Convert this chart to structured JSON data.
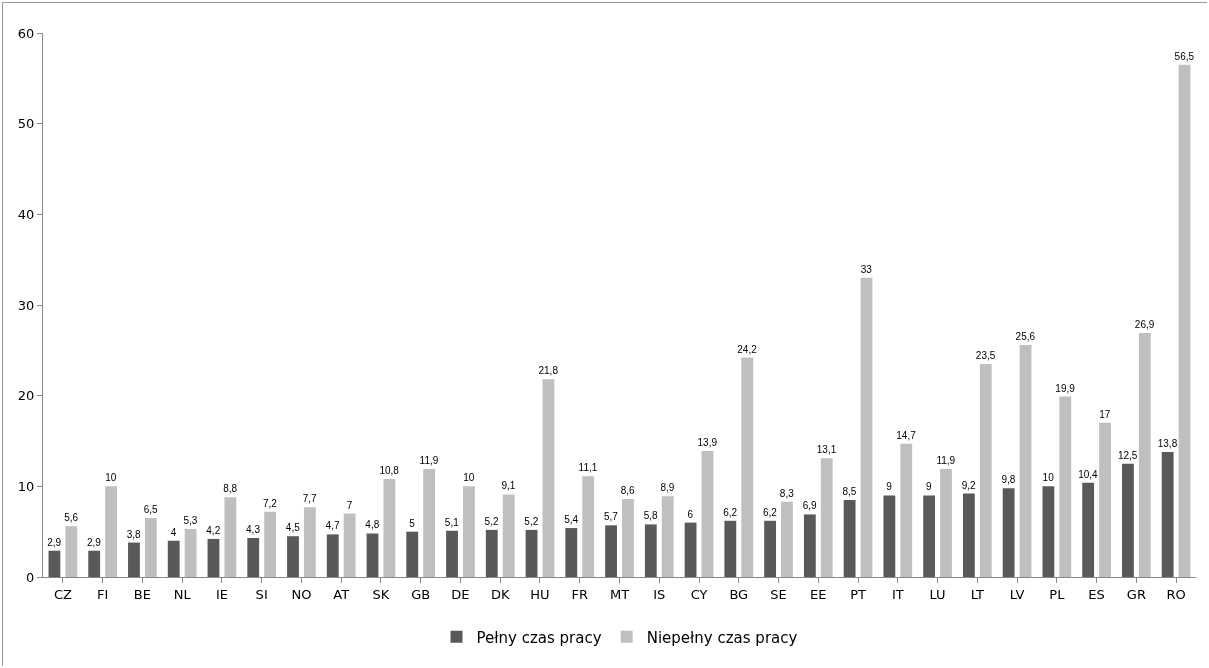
{
  "chart_data": {
    "type": "bar",
    "categories": [
      "CZ",
      "FI",
      "BE",
      "NL",
      "IE",
      "SI",
      "NO",
      "AT",
      "SK",
      "GB",
      "DE",
      "DK",
      "HU",
      "FR",
      "MT",
      "IS",
      "CY",
      "BG",
      "SE",
      "EE",
      "PT",
      "IT",
      "LU",
      "LT",
      "LV",
      "PL",
      "ES",
      "GR",
      "RO"
    ],
    "series": [
      {
        "name": "Pełny czas pracy",
        "color": "#595959",
        "values": [
          2.9,
          2.9,
          3.8,
          4,
          4.2,
          4.3,
          4.5,
          4.7,
          4.8,
          5,
          5.1,
          5.2,
          5.2,
          5.4,
          5.7,
          5.8,
          6,
          6.2,
          6.2,
          6.9,
          8.5,
          9,
          9,
          9.2,
          9.8,
          10,
          10.4,
          12.5,
          13.8
        ],
        "value_labels": [
          "2,9",
          "2,9",
          "3,8",
          "4",
          "4,2",
          "4,3",
          "4,5",
          "4,7",
          "4,8",
          "5",
          "5,1",
          "5,2",
          "5,2",
          "5,4",
          "5,7",
          "5,8",
          "6",
          "6,2",
          "6,2",
          "6,9",
          "8,5",
          "9",
          "9",
          "9,2",
          "9,8",
          "10",
          "10,4",
          "12,5",
          "13,8"
        ]
      },
      {
        "name": "Niepełny czas pracy",
        "color": "#bfbfbf",
        "values": [
          5.6,
          10,
          6.5,
          5.3,
          8.8,
          7.2,
          7.7,
          7,
          10.8,
          11.9,
          10,
          9.1,
          21.8,
          11.1,
          8.6,
          8.9,
          13.9,
          24.2,
          8.3,
          13.1,
          33,
          14.7,
          11.9,
          23.5,
          25.6,
          19.9,
          17,
          26.9,
          56.5
        ],
        "value_labels": [
          "5,6",
          "10",
          "6,5",
          "5,3",
          "8,8",
          "7,2",
          "7,7",
          "7",
          "10,8",
          "11,9",
          "10",
          "9,1",
          "21,8",
          "11,1",
          "8,6",
          "8,9",
          "13,9",
          "24,2",
          "8,3",
          "13,1",
          "33",
          "14,7",
          "11,9",
          "23,5",
          "25,6",
          "19,9",
          "17",
          "26,9",
          "56,5"
        ]
      }
    ],
    "ylim": [
      0,
      60
    ],
    "yticks": [
      0,
      10,
      20,
      30,
      40,
      50,
      60
    ],
    "grid": false,
    "legend": "bottom"
  }
}
